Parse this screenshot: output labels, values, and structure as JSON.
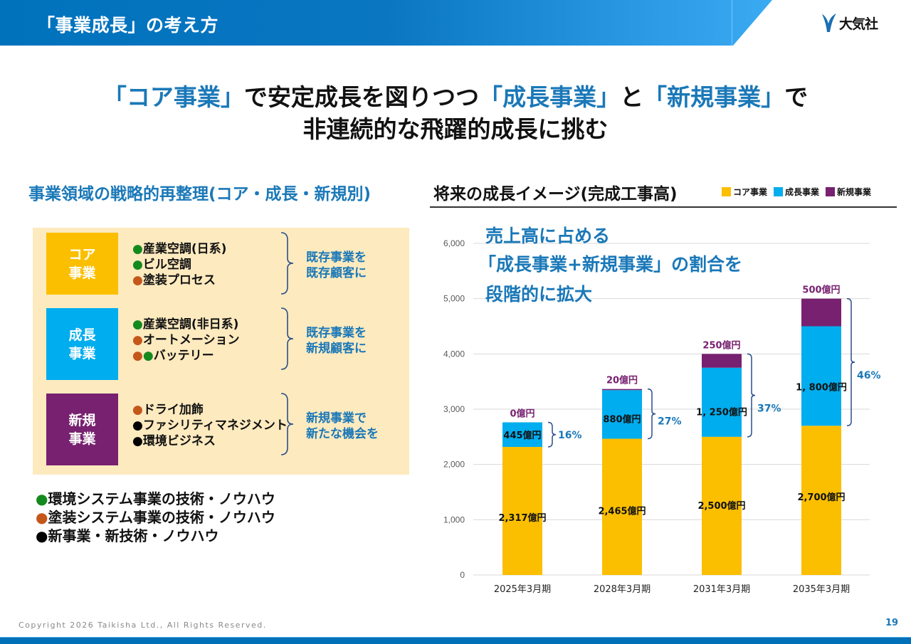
{
  "header": {
    "title": "「事業成長」の考え方",
    "logo_text": "大気社",
    "logo_icon": "taikisha-v-mark-icon"
  },
  "headline": {
    "line1": [
      {
        "text": "「コア事業」",
        "accent": true
      },
      {
        "text": "で安定成長を図りつつ",
        "accent": false
      },
      {
        "text": "「成長事業」",
        "accent": true
      },
      {
        "text": "と",
        "accent": false
      },
      {
        "text": "「新規事業」",
        "accent": true
      },
      {
        "text": "で",
        "accent": false
      }
    ],
    "line2": "非連続的な飛躍的成長に挑む"
  },
  "left": {
    "title": "事業領域の戦略的再整理(コア・成長・新規別)",
    "categories": [
      {
        "label_line1": "コア",
        "label_line2": "事業",
        "color": "#fbbf00",
        "items": [
          {
            "dots": [
              "green"
            ],
            "text": "産業空調(日系)"
          },
          {
            "dots": [
              "green"
            ],
            "text": "ビル空調"
          },
          {
            "dots": [
              "orange"
            ],
            "text": "塗装プロセス"
          }
        ],
        "desc_line1": "既存事業を",
        "desc_line2": "既存顧客に"
      },
      {
        "label_line1": "成長",
        "label_line2": "事業",
        "color": "#00adee",
        "items": [
          {
            "dots": [
              "green"
            ],
            "text": "産業空調(非日系)"
          },
          {
            "dots": [
              "orange"
            ],
            "text": "オートメーション"
          },
          {
            "dots": [
              "orange",
              "green"
            ],
            "text": "バッテリー"
          }
        ],
        "desc_line1": "既存事業を",
        "desc_line2": "新規顧客に"
      },
      {
        "label_line1": "新規",
        "label_line2": "事業",
        "color": "#772170",
        "items": [
          {
            "dots": [
              "orange"
            ],
            "text": "ドライ加飾"
          },
          {
            "dots": [
              "black"
            ],
            "text": "ファシリティマネジメント"
          },
          {
            "dots": [
              "black"
            ],
            "text": "環境ビジネス"
          }
        ],
        "desc_line1": "新規事業で",
        "desc_line2": "新たな機会を"
      }
    ],
    "dot_colors": {
      "green": "#148a1e",
      "orange": "#c4571a",
      "black": "#000000"
    },
    "legend": [
      {
        "dot": "green",
        "text": "環境システム事業の技術・ノウハウ"
      },
      {
        "dot": "orange",
        "text": "塗装システム事業の技術・ノウハウ"
      },
      {
        "dot": "black",
        "text": "新事業・新技術・ノウハウ"
      }
    ]
  },
  "right": {
    "title": "将来の成長イメージ(完成工事高)",
    "callout": [
      "売上高に占める",
      "「成長事業+新規事業」の割合を",
      "段階的に拡大"
    ]
  },
  "chart_data": {
    "type": "bar",
    "stacked": true,
    "title": "将来の成長イメージ(完成工事高)",
    "xlabel": "",
    "ylabel": "",
    "unit": "億円",
    "categories": [
      "2025年3月期",
      "2028年3月期",
      "2031年3月期",
      "2035年3月期"
    ],
    "series": [
      {
        "name": "コア事業",
        "color": "#fbbf00",
        "values": [
          2317,
          2465,
          2500,
          2700
        ],
        "labels": [
          "2,317億円",
          "2,465億円",
          "2,500億円",
          "2,700億円"
        ],
        "label_color": "#111111"
      },
      {
        "name": "成長事業",
        "color": "#00adee",
        "values": [
          445,
          880,
          1250,
          1800
        ],
        "labels": [
          "445億円",
          "880億円",
          "1, 250億円",
          "1, 800億円"
        ],
        "label_color": "#111111"
      },
      {
        "name": "新規事業",
        "color": "#772170",
        "values": [
          0,
          20,
          250,
          500
        ],
        "labels": [
          "0億円",
          "20億円",
          "250億円",
          "500億円"
        ],
        "label_color": "#772170"
      }
    ],
    "share_labels": [
      "16%",
      "27%",
      "37%",
      "46%"
    ],
    "share_color": "#1a78b8",
    "ylim": [
      0,
      6000
    ],
    "yticks": [
      0,
      1000,
      2000,
      3000,
      4000,
      5000,
      6000
    ],
    "ytick_labels": [
      "0",
      "1,000",
      "2,000",
      "3,000",
      "4,000",
      "5,000",
      "6,000"
    ],
    "grid": true,
    "legend_position": "top-right"
  },
  "footer": {
    "copyright": "Copyright  2026 Taikisha Ltd., All Rights Reserved.",
    "page_number": "19"
  }
}
